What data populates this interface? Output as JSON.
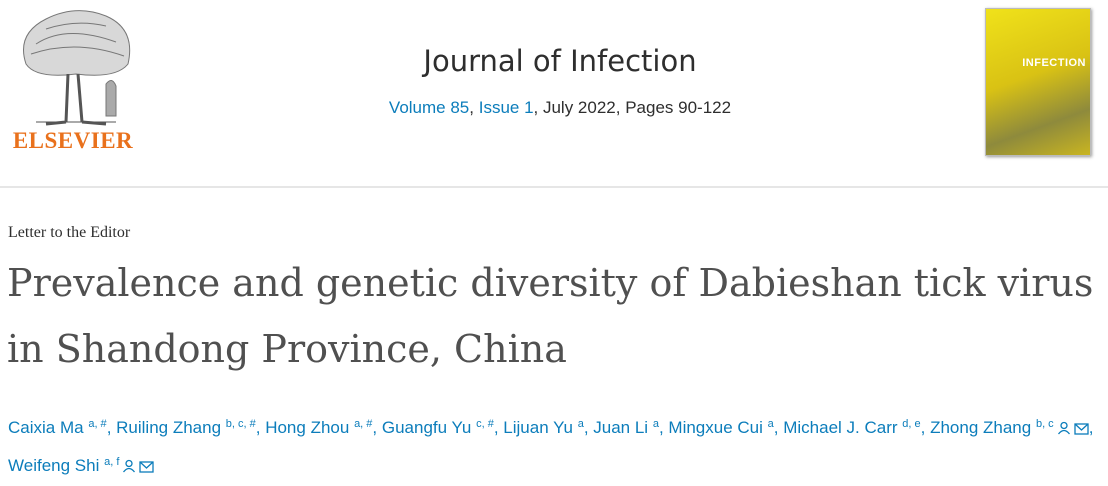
{
  "header": {
    "publisher": "ELSEVIER",
    "journal": "Journal of Infection",
    "citation": {
      "volume": "Volume 85",
      "separator": ", ",
      "issue": "Issue 1",
      "rest": ", July 2022, Pages 90-122"
    },
    "cover_label": "INFECTION"
  },
  "article": {
    "type": "Letter to the Editor",
    "title": "Prevalence and genetic diversity of Dabieshan tick virus in Shandong Province, China",
    "author_separator": ", ",
    "authors": [
      {
        "name": "Caixia Ma",
        "affiliations": "a, #"
      },
      {
        "name": "Ruiling Zhang",
        "affiliations": "b, c, #"
      },
      {
        "name": "Hong Zhou",
        "affiliations": "a, #"
      },
      {
        "name": "Guangfu Yu",
        "affiliations": "c, #"
      },
      {
        "name": "Lijuan Yu",
        "affiliations": "a"
      },
      {
        "name": "Juan Li",
        "affiliations": "a"
      },
      {
        "name": "Mingxue Cui",
        "affiliations": "a"
      },
      {
        "name": "Michael J. Carr",
        "affiliations": "d, e"
      },
      {
        "name": "Zhong Zhang",
        "affiliations": "b, c",
        "corresponding": true
      },
      {
        "name": "Weifeng Shi",
        "affiliations": "a, f",
        "corresponding": true
      }
    ]
  }
}
